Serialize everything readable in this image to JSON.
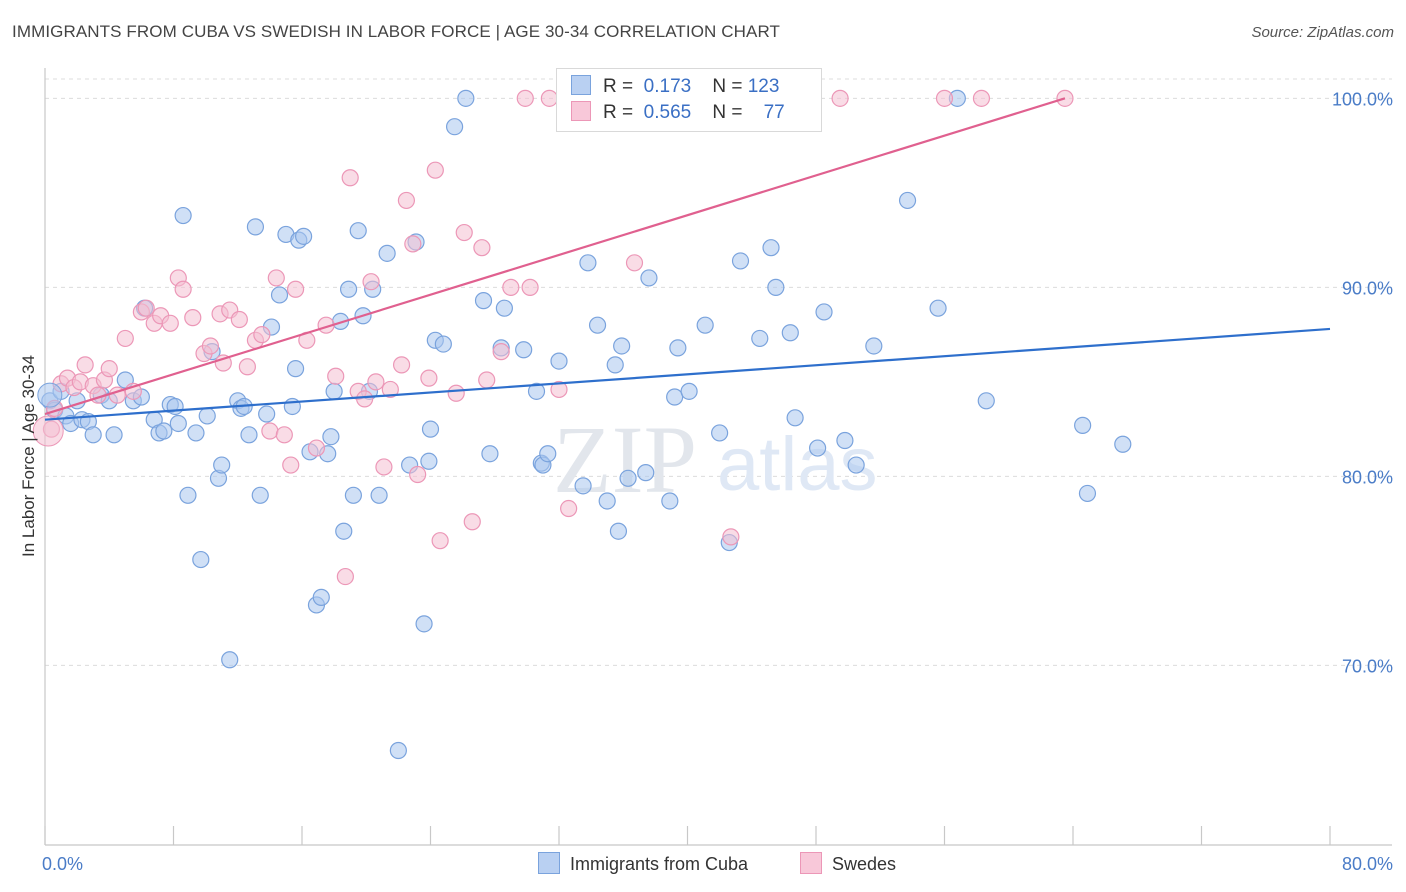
{
  "title": "IMMIGRANTS FROM CUBA VS SWEDISH IN LABOR FORCE | AGE 30-34 CORRELATION CHART",
  "source": "Source: ZipAtlas.com",
  "watermark": {
    "zip": "ZIP",
    "atlas": "atlas"
  },
  "legend": {
    "r_label": "R =",
    "n_label": "N =",
    "rows": [
      {
        "r": "0.173",
        "n": "123"
      },
      {
        "r": "0.565",
        "n": "77"
      }
    ]
  },
  "chart_data": {
    "type": "scatter",
    "title": "IMMIGRANTS FROM CUBA VS SWEDISH IN LABOR FORCE | AGE 30-34 CORRELATION CHART",
    "xlabel": "",
    "ylabel": "In Labor Force | Age 30-34",
    "xlim": [
      0,
      80
    ],
    "ylim": [
      60.5,
      101.5
    ],
    "x_tick_labels": [
      {
        "value": 0,
        "label": "0.0%"
      },
      {
        "value": 80,
        "label": "80.0%"
      }
    ],
    "y_tick_labels": [
      {
        "value": 100,
        "label": "100.0%"
      },
      {
        "value": 90,
        "label": "90.0%"
      },
      {
        "value": 80,
        "label": "80.0%"
      },
      {
        "value": 70,
        "label": "70.0%"
      }
    ],
    "grid": true,
    "legend_position": "top-center",
    "series": [
      {
        "name": "Immigrants from Cuba",
        "color": "#7aa3dd",
        "fill": "#a9c6ee",
        "trendline": {
          "x": [
            0,
            80
          ],
          "y": [
            83.0,
            87.8
          ],
          "color": "#2e6fcc"
        },
        "points": [
          [
            0.3,
            84.0
          ],
          [
            0.6,
            83.5
          ],
          [
            1.0,
            84.5
          ],
          [
            1.3,
            83.2
          ],
          [
            1.6,
            82.8
          ],
          [
            2.0,
            84.0
          ],
          [
            2.3,
            83.0
          ],
          [
            2.7,
            82.9
          ],
          [
            3.0,
            82.2
          ],
          [
            3.5,
            84.3
          ],
          [
            4.0,
            84.0
          ],
          [
            4.3,
            82.2
          ],
          [
            5.0,
            85.1
          ],
          [
            5.5,
            84.0
          ],
          [
            6.0,
            84.2
          ],
          [
            6.2,
            88.9
          ],
          [
            6.8,
            83.0
          ],
          [
            7.1,
            82.3
          ],
          [
            7.4,
            82.4
          ],
          [
            7.8,
            83.8
          ],
          [
            8.1,
            83.7
          ],
          [
            8.3,
            82.8
          ],
          [
            8.6,
            93.8
          ],
          [
            8.9,
            79.0
          ],
          [
            9.4,
            82.3
          ],
          [
            9.7,
            75.6
          ],
          [
            10.1,
            83.2
          ],
          [
            10.4,
            86.6
          ],
          [
            10.8,
            79.9
          ],
          [
            11.0,
            80.6
          ],
          [
            11.5,
            70.3
          ],
          [
            12.0,
            84.0
          ],
          [
            12.2,
            83.6
          ],
          [
            12.4,
            83.7
          ],
          [
            12.7,
            82.2
          ],
          [
            13.1,
            93.2
          ],
          [
            13.4,
            79.0
          ],
          [
            13.8,
            83.3
          ],
          [
            14.1,
            87.9
          ],
          [
            14.6,
            89.6
          ],
          [
            15.0,
            92.8
          ],
          [
            15.4,
            83.7
          ],
          [
            15.6,
            85.7
          ],
          [
            15.8,
            92.5
          ],
          [
            16.1,
            92.7
          ],
          [
            16.5,
            81.3
          ],
          [
            16.9,
            73.2
          ],
          [
            17.2,
            73.6
          ],
          [
            17.6,
            81.2
          ],
          [
            17.8,
            82.1
          ],
          [
            18.0,
            84.5
          ],
          [
            18.4,
            88.2
          ],
          [
            18.6,
            77.1
          ],
          [
            18.9,
            89.9
          ],
          [
            19.2,
            79.0
          ],
          [
            19.5,
            93.0
          ],
          [
            19.8,
            88.5
          ],
          [
            20.2,
            84.5
          ],
          [
            20.4,
            89.9
          ],
          [
            20.8,
            79.0
          ],
          [
            21.3,
            91.8
          ],
          [
            22.0,
            65.5
          ],
          [
            22.7,
            80.6
          ],
          [
            23.1,
            92.4
          ],
          [
            23.6,
            72.2
          ],
          [
            23.9,
            80.8
          ],
          [
            24.0,
            82.5
          ],
          [
            24.3,
            87.2
          ],
          [
            24.8,
            87.0
          ],
          [
            25.5,
            98.5
          ],
          [
            26.2,
            100.0
          ],
          [
            27.3,
            89.3
          ],
          [
            27.7,
            81.2
          ],
          [
            28.4,
            86.8
          ],
          [
            28.6,
            88.9
          ],
          [
            29.8,
            86.7
          ],
          [
            30.6,
            84.5
          ],
          [
            30.9,
            80.7
          ],
          [
            31.0,
            80.6
          ],
          [
            31.3,
            81.2
          ],
          [
            32.0,
            86.1
          ],
          [
            33.5,
            79.5
          ],
          [
            33.8,
            91.3
          ],
          [
            34.4,
            88.0
          ],
          [
            35.0,
            78.7
          ],
          [
            35.5,
            85.9
          ],
          [
            35.7,
            77.1
          ],
          [
            35.9,
            86.9
          ],
          [
            36.3,
            79.9
          ],
          [
            37.4,
            80.2
          ],
          [
            37.6,
            90.5
          ],
          [
            38.9,
            78.7
          ],
          [
            39.2,
            84.2
          ],
          [
            39.4,
            86.8
          ],
          [
            40.1,
            84.5
          ],
          [
            41.1,
            88.0
          ],
          [
            42.0,
            82.3
          ],
          [
            42.6,
            76.5
          ],
          [
            43.3,
            91.4
          ],
          [
            44.5,
            87.3
          ],
          [
            45.2,
            92.1
          ],
          [
            45.5,
            90.0
          ],
          [
            46.4,
            87.6
          ],
          [
            46.7,
            83.1
          ],
          [
            48.1,
            81.5
          ],
          [
            48.5,
            88.7
          ],
          [
            49.8,
            81.9
          ],
          [
            50.5,
            80.6
          ],
          [
            51.6,
            86.9
          ],
          [
            53.7,
            94.6
          ],
          [
            55.6,
            88.9
          ],
          [
            56.8,
            100.0
          ],
          [
            58.6,
            84.0
          ],
          [
            64.6,
            82.7
          ],
          [
            64.9,
            79.1
          ],
          [
            67.1,
            81.7
          ]
        ]
      },
      {
        "name": "Swedes",
        "color": "#ec97b7",
        "fill": "#f4bfd2",
        "trendline": {
          "x": [
            0,
            63.5
          ],
          "y": [
            83.3,
            100.0
          ],
          "color": "#e0608f"
        },
        "points": [
          [
            0.4,
            82.5
          ],
          [
            0.6,
            83.6
          ],
          [
            1.0,
            84.9
          ],
          [
            1.4,
            85.2
          ],
          [
            1.8,
            84.7
          ],
          [
            2.2,
            85.0
          ],
          [
            2.5,
            85.9
          ],
          [
            3.0,
            84.8
          ],
          [
            3.3,
            84.3
          ],
          [
            3.7,
            85.1
          ],
          [
            4.0,
            85.7
          ],
          [
            4.5,
            84.3
          ],
          [
            5.0,
            87.3
          ],
          [
            5.5,
            84.5
          ],
          [
            6.0,
            88.7
          ],
          [
            6.3,
            88.9
          ],
          [
            6.8,
            88.1
          ],
          [
            7.2,
            88.5
          ],
          [
            7.8,
            88.1
          ],
          [
            8.3,
            90.5
          ],
          [
            8.6,
            89.9
          ],
          [
            9.2,
            88.4
          ],
          [
            9.9,
            86.5
          ],
          [
            10.3,
            86.9
          ],
          [
            10.9,
            88.6
          ],
          [
            11.1,
            86.0
          ],
          [
            11.5,
            88.8
          ],
          [
            12.1,
            88.3
          ],
          [
            12.6,
            85.8
          ],
          [
            13.1,
            87.2
          ],
          [
            13.5,
            87.5
          ],
          [
            14.0,
            82.4
          ],
          [
            14.4,
            90.5
          ],
          [
            14.9,
            82.2
          ],
          [
            15.3,
            80.6
          ],
          [
            15.6,
            89.9
          ],
          [
            16.3,
            87.2
          ],
          [
            16.9,
            81.5
          ],
          [
            17.5,
            88.0
          ],
          [
            18.1,
            85.3
          ],
          [
            18.7,
            74.7
          ],
          [
            19.0,
            95.8
          ],
          [
            19.5,
            84.5
          ],
          [
            19.9,
            84.1
          ],
          [
            20.3,
            90.3
          ],
          [
            20.6,
            85.0
          ],
          [
            21.1,
            80.5
          ],
          [
            21.5,
            84.6
          ],
          [
            22.2,
            85.9
          ],
          [
            22.5,
            94.6
          ],
          [
            22.9,
            92.3
          ],
          [
            23.2,
            80.1
          ],
          [
            23.9,
            85.2
          ],
          [
            24.3,
            96.2
          ],
          [
            24.6,
            76.6
          ],
          [
            25.6,
            84.4
          ],
          [
            26.1,
            92.9
          ],
          [
            26.6,
            77.6
          ],
          [
            27.2,
            92.1
          ],
          [
            27.5,
            85.1
          ],
          [
            28.4,
            86.6
          ],
          [
            29.0,
            90.0
          ],
          [
            29.9,
            100.0
          ],
          [
            30.2,
            90.0
          ],
          [
            31.4,
            100.0
          ],
          [
            32.0,
            84.6
          ],
          [
            32.6,
            78.3
          ],
          [
            34.5,
            100.0
          ],
          [
            36.7,
            91.3
          ],
          [
            37.5,
            100.0
          ],
          [
            42.7,
            76.8
          ],
          [
            49.5,
            100.0
          ],
          [
            56.0,
            100.0
          ],
          [
            58.3,
            100.0
          ],
          [
            63.5,
            100.0
          ]
        ]
      }
    ]
  }
}
